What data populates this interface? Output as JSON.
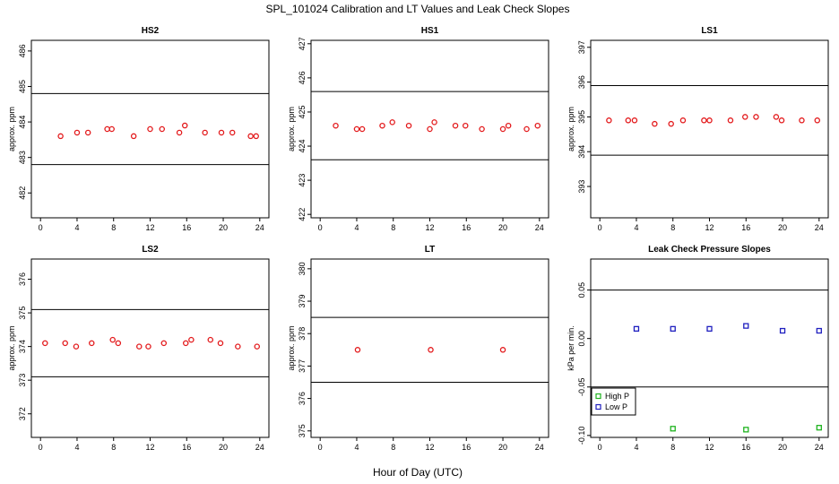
{
  "figure": {
    "title": "SPL_101024  Calibration and LT Values and Leak Check Slopes",
    "xlabel": "Hour of Day (UTC)"
  },
  "colors": {
    "red": "#e31a1c",
    "blue": "#1f1fbf",
    "green": "#1fb31f",
    "line": "#000000"
  },
  "chart_data": [
    {
      "type": "scatter",
      "title": "HS2",
      "ylabel": "approx. ppm",
      "xlim": [
        -1,
        25
      ],
      "ylim": [
        481.3,
        486.3
      ],
      "xticks": [
        0,
        4,
        8,
        12,
        16,
        20,
        24
      ],
      "yticks": [
        482,
        483,
        484,
        485,
        486
      ],
      "hlines": [
        482.8,
        484.8
      ],
      "marker": "circle",
      "series": [
        {
          "color": "red",
          "x": [
            2.2,
            4.0,
            5.2,
            7.3,
            7.8,
            10.2,
            12.0,
            13.3,
            15.2,
            15.8,
            18.0,
            19.8,
            21.0,
            23.0,
            23.6
          ],
          "y": [
            483.6,
            483.7,
            483.7,
            483.8,
            483.8,
            483.6,
            483.8,
            483.8,
            483.7,
            483.9,
            483.7,
            483.7,
            483.7,
            483.6,
            483.6
          ]
        }
      ]
    },
    {
      "type": "scatter",
      "title": "HS1",
      "ylabel": "approx. ppm",
      "xlim": [
        -1,
        25
      ],
      "ylim": [
        421.9,
        427.1
      ],
      "xticks": [
        0,
        4,
        8,
        12,
        16,
        20,
        24
      ],
      "yticks": [
        422,
        423,
        424,
        425,
        426,
        427
      ],
      "hlines": [
        423.6,
        425.6
      ],
      "marker": "circle",
      "series": [
        {
          "color": "red",
          "x": [
            1.7,
            4.0,
            4.6,
            6.8,
            7.9,
            9.7,
            12.0,
            12.5,
            14.8,
            15.9,
            17.7,
            20.0,
            20.6,
            22.6,
            23.8
          ],
          "y": [
            424.6,
            424.5,
            424.5,
            424.6,
            424.7,
            424.6,
            424.5,
            424.7,
            424.6,
            424.6,
            424.5,
            424.5,
            424.6,
            424.5,
            424.6
          ]
        }
      ]
    },
    {
      "type": "scatter",
      "title": "LS1",
      "ylabel": "approx. ppm",
      "xlim": [
        -1,
        25
      ],
      "ylim": [
        392.1,
        397.2
      ],
      "xticks": [
        0,
        4,
        8,
        12,
        16,
        20,
        24
      ],
      "yticks": [
        393,
        394,
        395,
        396,
        397
      ],
      "hlines": [
        393.9,
        395.9
      ],
      "marker": "circle",
      "series": [
        {
          "color": "red",
          "x": [
            1.0,
            3.1,
            3.8,
            6.0,
            7.8,
            9.1,
            11.4,
            12.0,
            14.3,
            15.9,
            17.1,
            19.3,
            19.9,
            22.1,
            23.8
          ],
          "y": [
            394.9,
            394.9,
            394.9,
            394.8,
            394.8,
            394.9,
            394.9,
            394.9,
            394.9,
            395.0,
            395.0,
            395.0,
            394.9,
            394.9,
            394.9
          ]
        }
      ]
    },
    {
      "type": "scatter",
      "title": "LS2",
      "ylabel": "approx. ppm",
      "xlim": [
        -1,
        25
      ],
      "ylim": [
        371.3,
        376.6
      ],
      "xticks": [
        0,
        4,
        8,
        12,
        16,
        20,
        24
      ],
      "yticks": [
        372,
        373,
        374,
        375,
        376
      ],
      "hlines": [
        373.1,
        375.1
      ],
      "marker": "circle",
      "series": [
        {
          "color": "red",
          "x": [
            0.5,
            2.7,
            3.9,
            5.6,
            7.9,
            8.5,
            10.8,
            11.8,
            13.5,
            15.9,
            16.5,
            18.6,
            19.7,
            21.6,
            23.7
          ],
          "y": [
            374.1,
            374.1,
            374.0,
            374.1,
            374.2,
            374.1,
            374.0,
            374.0,
            374.1,
            374.1,
            374.2,
            374.2,
            374.1,
            374.0,
            374.0
          ]
        }
      ]
    },
    {
      "type": "scatter",
      "title": "LT",
      "ylabel": "approx. ppm",
      "xlim": [
        -1,
        25
      ],
      "ylim": [
        374.8,
        380.3
      ],
      "xticks": [
        0,
        4,
        8,
        12,
        16,
        20,
        24
      ],
      "yticks": [
        375,
        376,
        377,
        378,
        379,
        380
      ],
      "hlines": [
        376.5,
        378.5
      ],
      "marker": "circle",
      "series": [
        {
          "color": "red",
          "x": [
            4.1,
            12.1,
            20.0
          ],
          "y": [
            377.5,
            377.5,
            377.5
          ]
        }
      ]
    },
    {
      "type": "scatter",
      "title": "Leak Check Pressure Slopes",
      "ylabel": "kPa per min.",
      "xlim": [
        -1,
        25
      ],
      "ylim": [
        -0.102,
        0.082
      ],
      "xticks": [
        0,
        4,
        8,
        12,
        16,
        20,
        24
      ],
      "yticks": [
        -0.1,
        -0.05,
        0.0,
        0.05
      ],
      "ytick_labels": [
        "-0.10",
        "-0.05",
        "0.00",
        "0.05"
      ],
      "hlines": [
        -0.05,
        0.05
      ],
      "marker": "square",
      "legend": {
        "position": "bottom-left",
        "entries": [
          {
            "name": "High P",
            "color": "green"
          },
          {
            "name": "Low P",
            "color": "blue"
          }
        ]
      },
      "series": [
        {
          "name": "High P",
          "color": "green",
          "x": [
            8,
            16,
            24
          ],
          "y": [
            -0.093,
            -0.094,
            -0.092
          ]
        },
        {
          "name": "Low P",
          "color": "blue",
          "x": [
            4,
            8,
            12,
            16,
            20,
            24
          ],
          "y": [
            0.01,
            0.01,
            0.01,
            0.013,
            0.008,
            0.008
          ]
        }
      ]
    }
  ]
}
